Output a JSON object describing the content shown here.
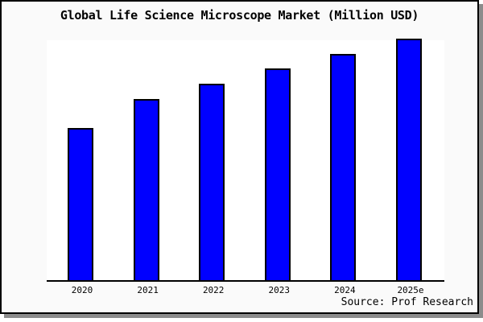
{
  "chart_data": {
    "type": "bar",
    "title": "Global Life Science Microscope Market (Million USD)",
    "categories": [
      "2020",
      "2021",
      "2022",
      "2023",
      "2024",
      "2025e"
    ],
    "values": [
      63.0,
      75.0,
      81.3,
      87.7,
      93.7,
      100.0
    ],
    "values_unit": "relative bar height, % of tallest bar (no numeric y-axis shown in image)",
    "ylim": [
      0,
      100
    ],
    "grid": false,
    "legend": "none",
    "y_axis_labels": "none",
    "source_credit": "Source: Prof Research",
    "colors": {
      "bar_fill": "#0000ff",
      "bar_border": "#000000",
      "plot_background": "#ffffff",
      "frame_background": "#fafafa",
      "axis_line": "#000000",
      "text": "#000000",
      "frame_shadow": "#8c8c8c"
    }
  }
}
